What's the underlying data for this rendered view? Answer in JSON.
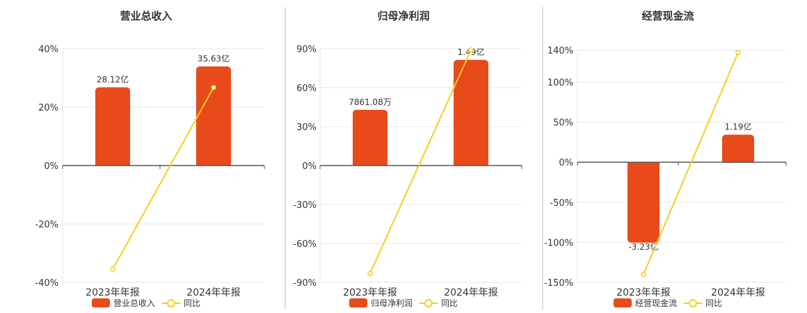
{
  "colors": {
    "bar": "#e84a1a",
    "line": "#f2cf1f",
    "axis": "#555555",
    "grid": "#e6e6ee",
    "divider": "#bfbfbf",
    "text": "#333333"
  },
  "chart_data": [
    {
      "type": "bar",
      "title": "营业总收入",
      "categories": [
        "2023年年报",
        "2024年年报"
      ],
      "series": [
        {
          "name": "营业总收入",
          "type": "bar",
          "values": [
            28.12,
            35.63
          ],
          "unit": "亿",
          "labels": [
            "28.12亿",
            "35.63亿"
          ]
        },
        {
          "name": "同比",
          "type": "line",
          "values": [
            -35.5,
            26.7
          ],
          "unit": "%"
        }
      ],
      "y_ticks": [
        "40%",
        "20%",
        "0%",
        "-20%",
        "-40%"
      ],
      "ylim": [
        -40,
        40
      ],
      "legend": {
        "position": "bottom",
        "items": [
          "营业总收入",
          "同比"
        ]
      },
      "grid": true
    },
    {
      "type": "bar",
      "title": "归母净利润",
      "categories": [
        "2023年年报",
        "2024年年报"
      ],
      "series": [
        {
          "name": "归母净利润",
          "type": "bar",
          "values": [
            0.7861,
            1.49
          ],
          "unit": "亿",
          "labels": [
            "7861.08万",
            "1.49亿"
          ]
        },
        {
          "name": "同比",
          "type": "line",
          "values": [
            -83,
            89
          ],
          "unit": "%"
        }
      ],
      "y_ticks": [
        "90%",
        "60%",
        "30%",
        "0%",
        "-30%",
        "-60%",
        "-90%"
      ],
      "ylim": [
        -90,
        90
      ],
      "legend": {
        "position": "bottom",
        "items": [
          "归母净利润",
          "同比"
        ]
      },
      "grid": true
    },
    {
      "type": "bar",
      "title": "经营现金流",
      "categories": [
        "2023年年报",
        "2024年年报"
      ],
      "series": [
        {
          "name": "经营现金流",
          "type": "bar",
          "values": [
            -3.23,
            1.19
          ],
          "unit": "亿",
          "labels": [
            "-3.23亿",
            "1.19亿"
          ]
        },
        {
          "name": "同比",
          "type": "line",
          "values": [
            -140,
            137
          ],
          "unit": "%"
        }
      ],
      "y_ticks": [
        "140%",
        "100%",
        "50%",
        "0%",
        "-50%",
        "-100%",
        "-150%"
      ],
      "ylim": [
        -150,
        140
      ],
      "legend": {
        "position": "bottom",
        "items": [
          "经营现金流",
          "同比"
        ]
      },
      "grid": true
    }
  ]
}
